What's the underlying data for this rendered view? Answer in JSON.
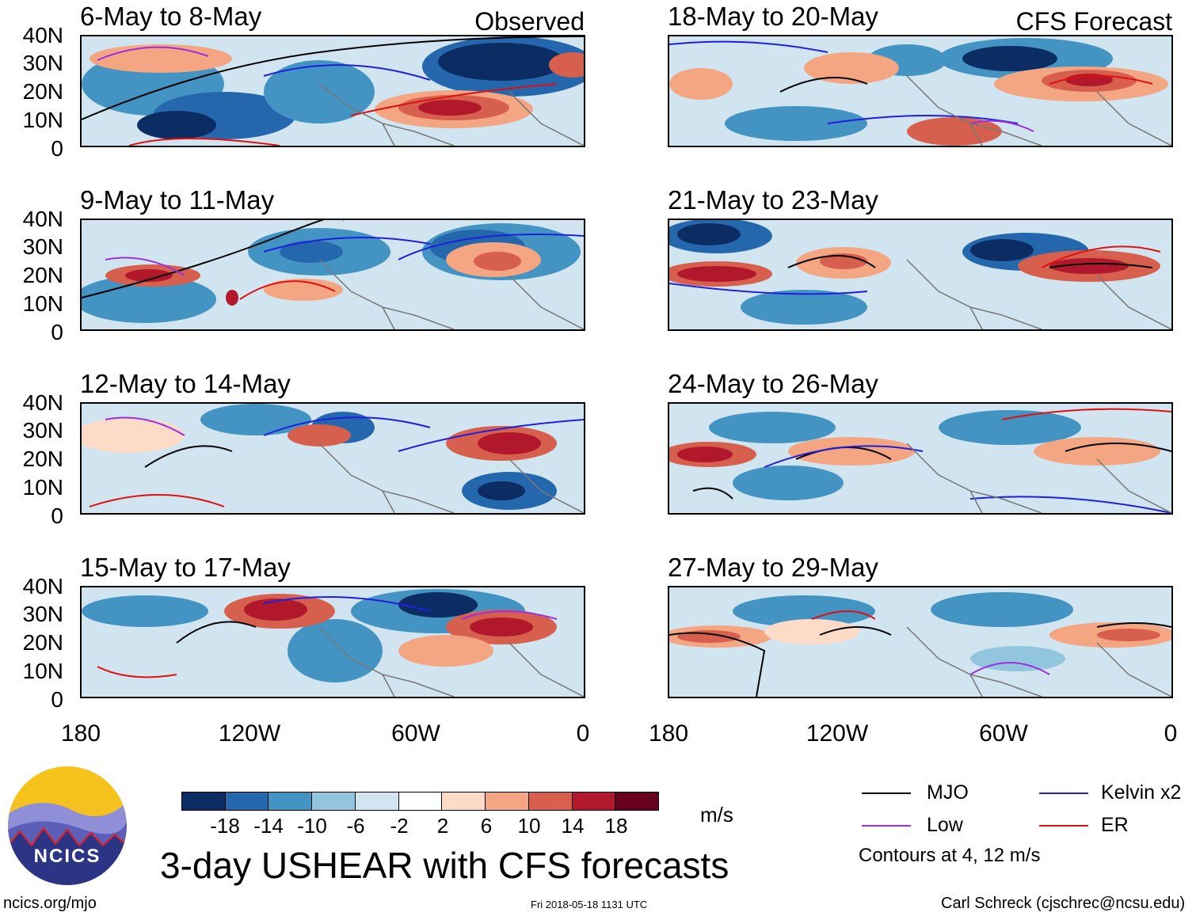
{
  "figure_title": "3-day USHEAR with CFS forecasts",
  "observed_tag": "Observed",
  "forecast_tag": "CFS Forecast",
  "panels": {
    "observed": [
      {
        "period": "6-May to 8-May"
      },
      {
        "period": "9-May to 11-May"
      },
      {
        "period": "12-May to 14-May"
      },
      {
        "period": "15-May to 17-May"
      }
    ],
    "forecast": [
      {
        "period": "18-May to 20-May"
      },
      {
        "period": "21-May to 23-May"
      },
      {
        "period": "24-May to 26-May"
      },
      {
        "period": "27-May to 29-May"
      }
    ]
  },
  "axes": {
    "lat_ticks": [
      "40N",
      "30N",
      "20N",
      "10N",
      "0"
    ],
    "lon_ticks": [
      "180",
      "120W",
      "60W",
      "0"
    ]
  },
  "colorbar": {
    "units": "m/s",
    "tick_labels": [
      "-18",
      "-14",
      "-10",
      "-6",
      "-2",
      "2",
      "6",
      "10",
      "14",
      "18"
    ],
    "colors": [
      "#0c2d63",
      "#2567ad",
      "#4393c3",
      "#92c5de",
      "#d1e5f0",
      "#ffffff",
      "#fddbc7",
      "#f4a582",
      "#d6604d",
      "#b2182b",
      "#67001f"
    ]
  },
  "legend": {
    "items": [
      {
        "label": "MJO",
        "color": "#000000"
      },
      {
        "label": "Kelvin x2",
        "color": "#1f1fe0"
      },
      {
        "label": "Low",
        "color": "#9b30e0"
      },
      {
        "label": "ER",
        "color": "#e01010"
      }
    ],
    "note": "Contours at 4, 12 m/s"
  },
  "footer": {
    "url": "ncics.org/mjo",
    "timestamp": "Fri 2018-05-18 1131 UTC",
    "author": "Carl Schreck (cjschrec@ncsu.edu)",
    "logo_text": "NCICS"
  },
  "chart_data": {
    "type": "heatmap",
    "variable": "USHEAR",
    "units": "m/s",
    "period_length_days": 3,
    "lat_range": [
      0,
      40
    ],
    "lon_range": [
      -180,
      0
    ],
    "contour_levels": [
      4,
      12
    ],
    "color_levels": [
      -18,
      -14,
      -10,
      -6,
      -2,
      2,
      6,
      10,
      14,
      18
    ]
  }
}
